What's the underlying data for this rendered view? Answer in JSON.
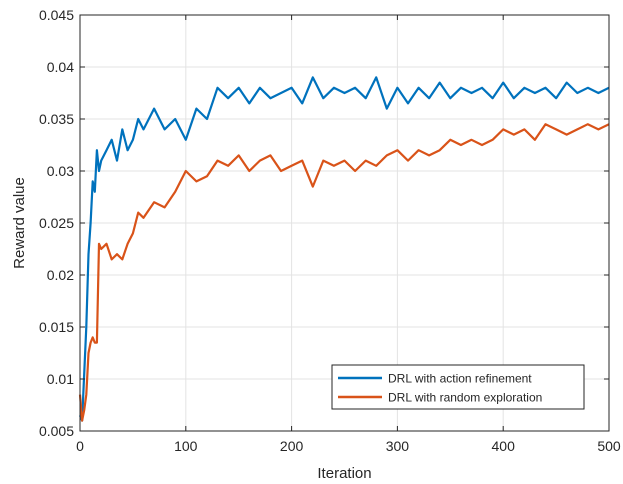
{
  "chart_data": {
    "type": "line",
    "title": "",
    "xlabel": "Iteration",
    "ylabel": "Reward value",
    "xlim": [
      0,
      500
    ],
    "ylim": [
      0.005,
      0.045
    ],
    "xticks": [
      0,
      100,
      200,
      300,
      400,
      500
    ],
    "xtick_labels": [
      "0",
      "100",
      "200",
      "300",
      "400",
      "500"
    ],
    "yticks": [
      0.005,
      0.01,
      0.015,
      0.02,
      0.025,
      0.03,
      0.035,
      0.04,
      0.045
    ],
    "ytick_labels": [
      "0.005",
      "0.01",
      "0.015",
      "0.02",
      "0.025",
      "0.03",
      "0.035",
      "0.04",
      "0.045"
    ],
    "grid": true,
    "legend_position": "bottom-right",
    "series": [
      {
        "name": "DRL with action refinement",
        "color": "#0072BD",
        "x": [
          0,
          2,
          4,
          6,
          8,
          10,
          12,
          14,
          16,
          18,
          20,
          25,
          30,
          35,
          40,
          45,
          50,
          55,
          60,
          70,
          80,
          90,
          100,
          110,
          120,
          130,
          140,
          150,
          160,
          170,
          180,
          190,
          200,
          210,
          220,
          230,
          240,
          250,
          260,
          270,
          280,
          290,
          300,
          310,
          320,
          330,
          340,
          350,
          360,
          370,
          380,
          390,
          400,
          410,
          420,
          430,
          440,
          450,
          460,
          470,
          480,
          490,
          500
        ],
        "y": [
          0.0065,
          0.006,
          0.0105,
          0.015,
          0.022,
          0.025,
          0.029,
          0.028,
          0.032,
          0.03,
          0.031,
          0.032,
          0.033,
          0.031,
          0.034,
          0.032,
          0.033,
          0.035,
          0.034,
          0.036,
          0.034,
          0.035,
          0.033,
          0.036,
          0.035,
          0.038,
          0.037,
          0.038,
          0.0365,
          0.038,
          0.037,
          0.0375,
          0.038,
          0.0365,
          0.039,
          0.037,
          0.038,
          0.0375,
          0.038,
          0.037,
          0.039,
          0.036,
          0.038,
          0.0365,
          0.038,
          0.037,
          0.0385,
          0.037,
          0.038,
          0.0375,
          0.038,
          0.037,
          0.0385,
          0.037,
          0.038,
          0.0375,
          0.038,
          0.037,
          0.0385,
          0.0375,
          0.038,
          0.0375,
          0.038
        ]
      },
      {
        "name": "DRL with random exploration",
        "color": "#D95319",
        "x": [
          0,
          2,
          4,
          6,
          8,
          10,
          12,
          14,
          16,
          18,
          20,
          25,
          30,
          35,
          40,
          45,
          50,
          55,
          60,
          70,
          80,
          90,
          100,
          110,
          120,
          130,
          140,
          150,
          160,
          170,
          180,
          190,
          200,
          210,
          220,
          230,
          240,
          250,
          260,
          270,
          280,
          290,
          300,
          310,
          320,
          330,
          340,
          350,
          360,
          370,
          380,
          390,
          400,
          410,
          420,
          430,
          440,
          450,
          460,
          470,
          480,
          490,
          500
        ],
        "y": [
          0.0085,
          0.006,
          0.007,
          0.0085,
          0.0125,
          0.0135,
          0.014,
          0.0135,
          0.0135,
          0.023,
          0.0225,
          0.023,
          0.0215,
          0.022,
          0.0215,
          0.023,
          0.024,
          0.026,
          0.0255,
          0.027,
          0.0265,
          0.028,
          0.03,
          0.029,
          0.0295,
          0.031,
          0.0305,
          0.0315,
          0.03,
          0.031,
          0.0315,
          0.03,
          0.0305,
          0.031,
          0.0285,
          0.031,
          0.0305,
          0.031,
          0.03,
          0.031,
          0.0305,
          0.0315,
          0.032,
          0.031,
          0.032,
          0.0315,
          0.032,
          0.033,
          0.0325,
          0.033,
          0.0325,
          0.033,
          0.034,
          0.0335,
          0.034,
          0.033,
          0.0345,
          0.034,
          0.0335,
          0.034,
          0.0345,
          0.034,
          0.0345
        ]
      }
    ]
  }
}
